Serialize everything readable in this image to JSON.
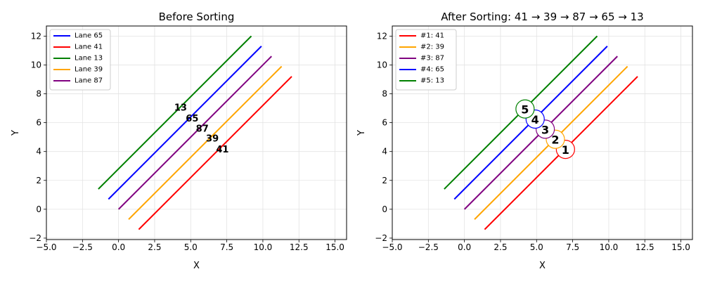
{
  "chart_data": [
    {
      "type": "line",
      "title": "Before Sorting",
      "xlabel": "X",
      "ylabel": "Y",
      "xlim": [
        -5,
        15.8
      ],
      "ylim": [
        -2.1,
        12.7
      ],
      "xticks": [
        -5.0,
        -2.5,
        0.0,
        2.5,
        5.0,
        7.5,
        10.0,
        12.5,
        15.0
      ],
      "xtick_labels": [
        "−5.0",
        "−2.5",
        "0.0",
        "2.5",
        "5.0",
        "7.5",
        "10.0",
        "12.5",
        "15.0"
      ],
      "yticks": [
        -2,
        0,
        2,
        4,
        6,
        8,
        10,
        12
      ],
      "ytick_labels": [
        "−2",
        "0",
        "2",
        "4",
        "6",
        "8",
        "10",
        "12"
      ],
      "grid": true,
      "legend_position": "upper-left",
      "series": [
        {
          "name": "Lane 65",
          "color": "#0000ff",
          "x": [
            -0.7,
            9.9
          ],
          "y": [
            0.7,
            11.3
          ]
        },
        {
          "name": "Lane 41",
          "color": "#ff0000",
          "x": [
            1.4,
            12.0
          ],
          "y": [
            -1.4,
            9.2
          ]
        },
        {
          "name": "Lane 13",
          "color": "#008000",
          "x": [
            -1.4,
            9.2
          ],
          "y": [
            1.4,
            12.0
          ]
        },
        {
          "name": "Lane 39",
          "color": "#ffa500",
          "x": [
            0.7,
            11.3
          ],
          "y": [
            -0.7,
            9.9
          ]
        },
        {
          "name": "Lane 87",
          "color": "#800080",
          "x": [
            0.0,
            10.6
          ],
          "y": [
            0.0,
            10.6
          ]
        }
      ],
      "annotations": [
        {
          "text": "13",
          "x": 4.3,
          "y": 7.0
        },
        {
          "text": "65",
          "x": 5.1,
          "y": 6.25
        },
        {
          "text": "87",
          "x": 5.8,
          "y": 5.55
        },
        {
          "text": "39",
          "x": 6.5,
          "y": 4.85
        },
        {
          "text": "41",
          "x": 7.2,
          "y": 4.1
        }
      ]
    },
    {
      "type": "line",
      "title": "After Sorting: 41 → 39 → 87 → 65 → 13",
      "xlabel": "X",
      "ylabel": "Y",
      "xlim": [
        -5,
        15.8
      ],
      "ylim": [
        -2.1,
        12.7
      ],
      "xticks": [
        -5.0,
        -2.5,
        0.0,
        2.5,
        5.0,
        7.5,
        10.0,
        12.5,
        15.0
      ],
      "xtick_labels": [
        "−5.0",
        "−2.5",
        "0.0",
        "2.5",
        "5.0",
        "7.5",
        "10.0",
        "12.5",
        "15.0"
      ],
      "yticks": [
        -2,
        0,
        2,
        4,
        6,
        8,
        10,
        12
      ],
      "ytick_labels": [
        "−2",
        "0",
        "2",
        "4",
        "6",
        "8",
        "10",
        "12"
      ],
      "grid": true,
      "legend_position": "upper-left",
      "series": [
        {
          "name": "#1: 41",
          "color": "#ff0000",
          "x": [
            1.4,
            12.0
          ],
          "y": [
            -1.4,
            9.2
          ]
        },
        {
          "name": "#2: 39",
          "color": "#ffa500",
          "x": [
            0.7,
            11.3
          ],
          "y": [
            -0.7,
            9.9
          ]
        },
        {
          "name": "#3: 87",
          "color": "#800080",
          "x": [
            0.0,
            10.6
          ],
          "y": [
            0.0,
            10.6
          ]
        },
        {
          "name": "#4: 65",
          "color": "#0000ff",
          "x": [
            -0.7,
            9.9
          ],
          "y": [
            0.7,
            11.3
          ]
        },
        {
          "name": "#5: 13",
          "color": "#008000",
          "x": [
            -1.4,
            9.2
          ],
          "y": [
            1.4,
            12.0
          ]
        }
      ],
      "markers": [
        {
          "text": "1",
          "x": 7.0,
          "y": 4.15,
          "color": "#ff0000"
        },
        {
          "text": "2",
          "x": 6.3,
          "y": 4.85,
          "color": "#ffa500"
        },
        {
          "text": "3",
          "x": 5.6,
          "y": 5.55,
          "color": "#800080"
        },
        {
          "text": "4",
          "x": 4.9,
          "y": 6.25,
          "color": "#0000ff"
        },
        {
          "text": "5",
          "x": 4.2,
          "y": 6.95,
          "color": "#008000"
        }
      ]
    }
  ]
}
